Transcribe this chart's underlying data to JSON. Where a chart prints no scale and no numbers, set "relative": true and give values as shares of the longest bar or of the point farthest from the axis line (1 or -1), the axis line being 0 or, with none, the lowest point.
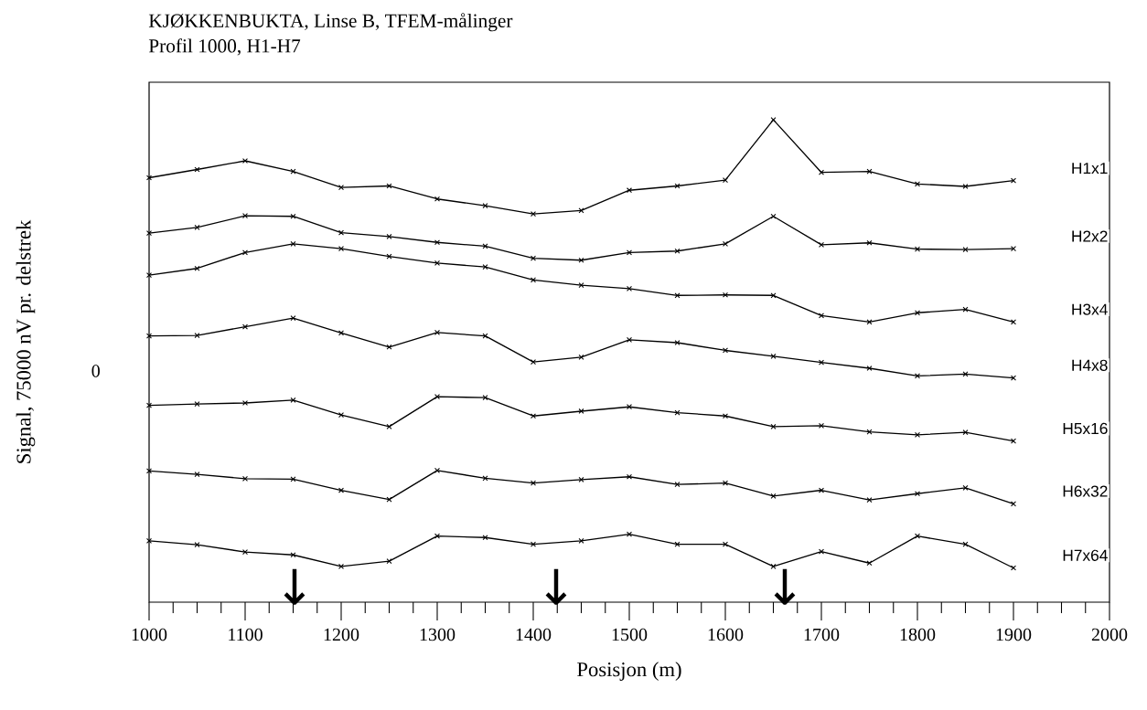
{
  "chart_data": {
    "type": "line",
    "title": "KJØKKENBUKTA, Linse B, TFEM-målinger",
    "subtitle": "Profil 1000, H1-H7",
    "xlabel": "Posisjon (m)",
    "ylabel": "Signal, 75000 nV pr. delstrek",
    "relative": true,
    "x": [
      1000,
      1050,
      1100,
      1150,
      1200,
      1250,
      1300,
      1350,
      1400,
      1450,
      1500,
      1550,
      1600,
      1650,
      1700,
      1750,
      1800,
      1850,
      1900
    ],
    "series": [
      {
        "name": "H1x1",
        "color": "#000000",
        "values": [
          0.88,
          0.897,
          0.915,
          0.893,
          0.86,
          0.863,
          0.836,
          0.822,
          0.805,
          0.812,
          0.854,
          0.863,
          0.875,
          1.0,
          0.891,
          0.893,
          0.867,
          0.862,
          0.874
        ]
      },
      {
        "name": "H2x2",
        "color": "#000000",
        "values": [
          0.765,
          0.777,
          0.801,
          0.8,
          0.766,
          0.758,
          0.746,
          0.738,
          0.713,
          0.709,
          0.725,
          0.728,
          0.743,
          0.8,
          0.741,
          0.745,
          0.732,
          0.731,
          0.733
        ]
      },
      {
        "name": "H3x4",
        "color": "#000000",
        "values": [
          0.678,
          0.692,
          0.725,
          0.743,
          0.733,
          0.717,
          0.703,
          0.695,
          0.668,
          0.657,
          0.65,
          0.636,
          0.637,
          0.636,
          0.594,
          0.581,
          0.6,
          0.607,
          0.581
        ]
      },
      {
        "name": "H4x8",
        "color": "#000000",
        "values": [
          0.552,
          0.553,
          0.571,
          0.589,
          0.558,
          0.529,
          0.559,
          0.552,
          0.498,
          0.508,
          0.544,
          0.538,
          0.522,
          0.51,
          0.497,
          0.485,
          0.469,
          0.473,
          0.465
        ]
      },
      {
        "name": "H5x16",
        "color": "#000000",
        "values": [
          0.408,
          0.411,
          0.413,
          0.419,
          0.388,
          0.364,
          0.426,
          0.424,
          0.386,
          0.396,
          0.405,
          0.393,
          0.386,
          0.364,
          0.366,
          0.353,
          0.347,
          0.352,
          0.334
        ]
      },
      {
        "name": "H6x32",
        "color": "#000000",
        "values": [
          0.272,
          0.265,
          0.256,
          0.255,
          0.232,
          0.213,
          0.273,
          0.257,
          0.247,
          0.254,
          0.26,
          0.244,
          0.247,
          0.22,
          0.232,
          0.212,
          0.225,
          0.237,
          0.204
        ]
      },
      {
        "name": "H7x64",
        "color": "#000000",
        "values": [
          0.127,
          0.119,
          0.104,
          0.098,
          0.074,
          0.085,
          0.137,
          0.134,
          0.12,
          0.127,
          0.141,
          0.12,
          0.12,
          0.074,
          0.105,
          0.081,
          0.137,
          0.12,
          0.071
        ]
      }
    ],
    "annotations": [
      "0",
      "↓",
      "↓",
      "↓"
    ],
    "xlim": [
      1000,
      2000
    ],
    "xticks": [
      1000,
      1100,
      1200,
      1300,
      1400,
      1500,
      1600,
      1700,
      1800,
      1900,
      2000
    ],
    "marker": "cross",
    "line_style": "solid"
  }
}
